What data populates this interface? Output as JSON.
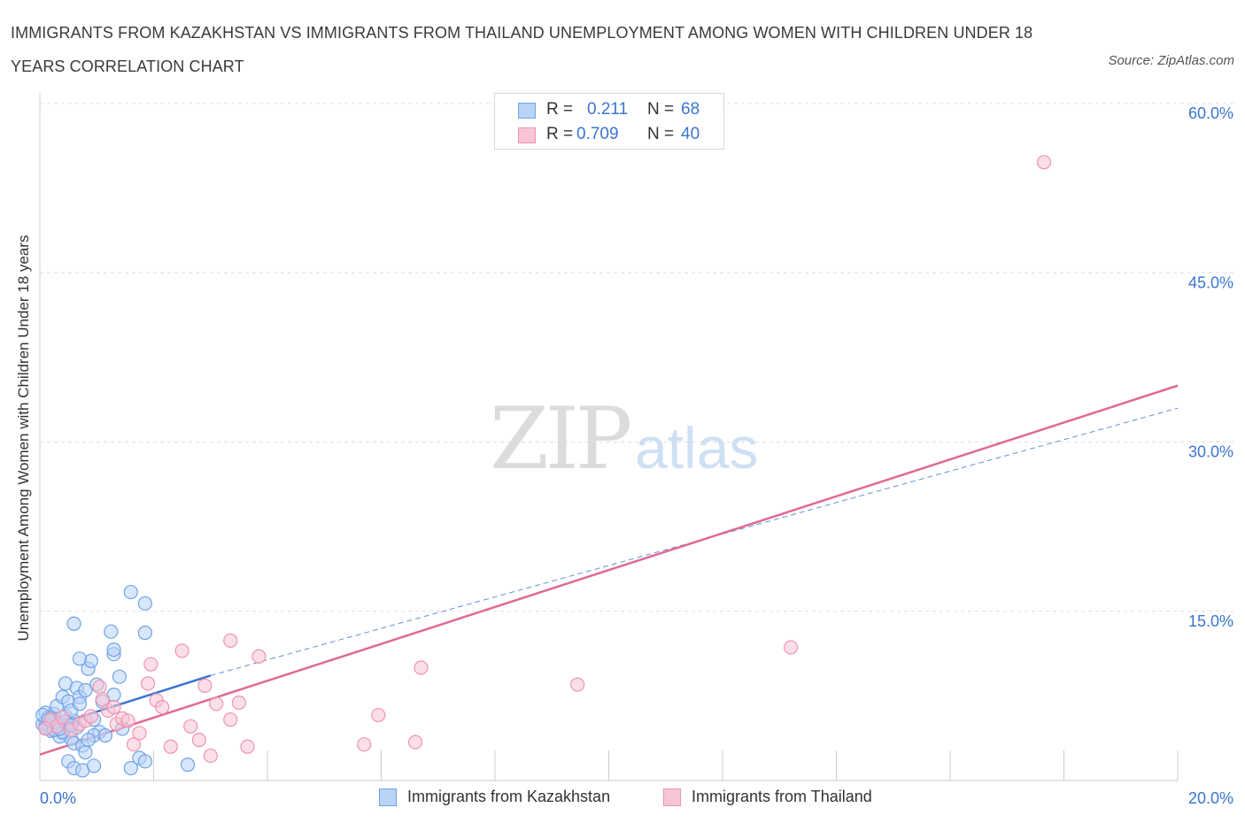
{
  "title": "IMMIGRANTS FROM KAZAKHSTAN VS IMMIGRANTS FROM THAILAND UNEMPLOYMENT AMONG WOMEN WITH CHILDREN UNDER 18 YEARS CORRELATION CHART",
  "source": "Source: ZipAtlas.com",
  "watermark": {
    "zip": "ZIP",
    "atlas": "atlas"
  },
  "legend": {
    "rows": [
      {
        "r_label": "R =",
        "r_value": "0.211",
        "n_label": "N =",
        "n_value": "68"
      },
      {
        "r_label": "R =",
        "r_value": "0.709",
        "n_label": "N =",
        "n_value": "40"
      }
    ]
  },
  "colors": {
    "kazakhstan_fill": "#b9d3f7",
    "kazakhstan_stroke": "#6fa3e6",
    "kazakhstan_line": "#3a75d0",
    "thailand_fill": "#f8c5d6",
    "thailand_stroke": "#ef93b1",
    "thailand_line": "#e06a94",
    "axis_label": "#3a75d0",
    "grid": "#dddddd"
  },
  "chart_data": {
    "type": "scatter",
    "title": "IMMIGRANTS FROM KAZAKHSTAN VS IMMIGRANTS FROM THAILAND UNEMPLOYMENT AMONG WOMEN WITH CHILDREN UNDER 18 YEARS CORRELATION CHART",
    "xlabel": "",
    "ylabel": "Unemployment Among Women with Children Under 18 years",
    "xlim": [
      0,
      20
    ],
    "ylim": [
      0,
      60
    ],
    "x_tick_labels": [
      "0.0%",
      "20.0%"
    ],
    "y_ticks": [
      15,
      30,
      45,
      60
    ],
    "y_tick_labels": [
      "15.0%",
      "30.0%",
      "45.0%",
      "60.0%"
    ],
    "grid": true,
    "series": [
      {
        "name": "Immigrants from Kazakhstan",
        "R": 0.211,
        "N": 68,
        "trend": {
          "x0": 0,
          "y0": 4.5,
          "x1": 3.0,
          "y1": 9.3,
          "dashed_to_x": 20,
          "dashed_to_y": 33.0
        },
        "points": [
          [
            0.1,
            5.2
          ],
          [
            0.15,
            4.8
          ],
          [
            0.2,
            5.5
          ],
          [
            0.1,
            6.0
          ],
          [
            0.3,
            4.6
          ],
          [
            0.25,
            5.9
          ],
          [
            0.35,
            5.0
          ],
          [
            0.4,
            4.2
          ],
          [
            0.45,
            5.7
          ],
          [
            0.5,
            4.9
          ],
          [
            0.3,
            6.6
          ],
          [
            0.2,
            4.4
          ],
          [
            0.55,
            3.7
          ],
          [
            0.6,
            5.3
          ],
          [
            0.15,
            5.6
          ],
          [
            0.35,
            3.9
          ],
          [
            0.4,
            7.4
          ],
          [
            0.5,
            7.0
          ],
          [
            0.45,
            8.6
          ],
          [
            0.65,
            8.2
          ],
          [
            0.7,
            7.4
          ],
          [
            0.55,
            6.2
          ],
          [
            0.6,
            3.3
          ],
          [
            0.75,
            3.1
          ],
          [
            0.8,
            2.5
          ],
          [
            0.5,
            1.7
          ],
          [
            0.6,
            1.1
          ],
          [
            0.75,
            0.9
          ],
          [
            0.95,
            1.3
          ],
          [
            0.85,
            9.9
          ],
          [
            0.9,
            10.6
          ],
          [
            0.7,
            10.8
          ],
          [
            1.0,
            8.5
          ],
          [
            1.05,
            4.3
          ],
          [
            1.1,
            7.0
          ],
          [
            0.95,
            4.0
          ],
          [
            0.85,
            3.6
          ],
          [
            1.15,
            4.0
          ],
          [
            0.95,
            5.4
          ],
          [
            0.6,
            13.9
          ],
          [
            1.25,
            13.2
          ],
          [
            1.3,
            11.2
          ],
          [
            1.3,
            11.6
          ],
          [
            1.4,
            9.2
          ],
          [
            1.45,
            4.6
          ],
          [
            1.3,
            7.6
          ],
          [
            1.6,
            16.7
          ],
          [
            1.85,
            15.7
          ],
          [
            1.85,
            13.1
          ],
          [
            1.6,
            1.1
          ],
          [
            1.75,
            2.0
          ],
          [
            1.85,
            1.7
          ],
          [
            2.6,
            1.4
          ],
          [
            0.05,
            5.0
          ],
          [
            0.1,
            4.7
          ],
          [
            0.2,
            5.3
          ],
          [
            0.3,
            5.1
          ],
          [
            0.25,
            4.5
          ],
          [
            0.4,
            4.3
          ],
          [
            0.5,
            5.0
          ],
          [
            0.65,
            4.7
          ],
          [
            0.7,
            6.8
          ],
          [
            0.8,
            8.0
          ],
          [
            0.05,
            5.8
          ],
          [
            0.15,
            5.4
          ],
          [
            0.35,
            4.6
          ],
          [
            0.45,
            5.2
          ],
          [
            0.55,
            4.9
          ]
        ]
      },
      {
        "name": "Immigrants from Thailand",
        "R": 0.709,
        "N": 40,
        "trend": {
          "x0": 0,
          "y0": 2.3,
          "x1": 20,
          "y1": 35.0
        },
        "points": [
          [
            0.2,
            5.4
          ],
          [
            0.3,
            4.8
          ],
          [
            0.4,
            5.6
          ],
          [
            0.55,
            4.5
          ],
          [
            0.7,
            5.0
          ],
          [
            0.8,
            5.3
          ],
          [
            0.9,
            5.7
          ],
          [
            1.05,
            8.3
          ],
          [
            1.1,
            7.2
          ],
          [
            1.2,
            6.2
          ],
          [
            1.3,
            6.5
          ],
          [
            1.35,
            5.0
          ],
          [
            1.45,
            5.5
          ],
          [
            1.55,
            5.3
          ],
          [
            1.65,
            3.2
          ],
          [
            1.75,
            4.2
          ],
          [
            1.9,
            8.6
          ],
          [
            1.95,
            10.3
          ],
          [
            2.05,
            7.1
          ],
          [
            2.15,
            6.5
          ],
          [
            2.3,
            3.0
          ],
          [
            2.5,
            11.5
          ],
          [
            2.65,
            4.8
          ],
          [
            2.8,
            3.6
          ],
          [
            2.9,
            8.4
          ],
          [
            3.0,
            2.2
          ],
          [
            3.1,
            6.8
          ],
          [
            3.35,
            12.4
          ],
          [
            3.35,
            5.4
          ],
          [
            3.5,
            6.9
          ],
          [
            3.65,
            3.0
          ],
          [
            3.85,
            11.0
          ],
          [
            5.7,
            3.2
          ],
          [
            5.95,
            5.8
          ],
          [
            6.6,
            3.4
          ],
          [
            6.7,
            10.0
          ],
          [
            9.45,
            8.5
          ],
          [
            13.2,
            11.8
          ],
          [
            17.65,
            54.8
          ],
          [
            0.1,
            4.6
          ]
        ]
      }
    ]
  }
}
